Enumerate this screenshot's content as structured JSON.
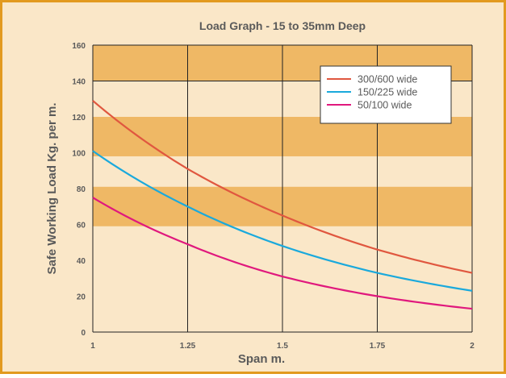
{
  "chart_data": {
    "type": "line",
    "title": "Load Graph - 15 to 35mm Deep",
    "xlabel": "Span m.",
    "ylabel": "Safe Working Load Kg. per m.",
    "xlim": [
      1,
      2
    ],
    "ylim": [
      0,
      160
    ],
    "xticks": [
      1,
      1.25,
      1.5,
      1.75,
      2
    ],
    "xtick_labels": [
      "1",
      "1.25",
      "1.5",
      "1.75",
      "2"
    ],
    "yticks": [
      0,
      20,
      40,
      60,
      80,
      100,
      120,
      140,
      160
    ],
    "ytick_labels": [
      "0",
      "20",
      "40",
      "60",
      "80",
      "100",
      "120",
      "140",
      "160"
    ],
    "bands": [
      {
        "y0": 59,
        "y1": 81
      },
      {
        "y0": 98,
        "y1": 120
      },
      {
        "y0": 140,
        "y1": 160
      }
    ],
    "grid": "vertical lines at x ticks",
    "legend_position": "top-right",
    "series": [
      {
        "name": "300/600 wide",
        "color": "#e0573f",
        "x": [
          1,
          1.25,
          1.5,
          1.75,
          2
        ],
        "values": [
          129,
          91,
          65,
          46,
          33
        ]
      },
      {
        "name": "150/225 wide",
        "color": "#1aa9dc",
        "x": [
          1,
          1.25,
          1.5,
          1.75,
          2
        ],
        "values": [
          101,
          70,
          48,
          33,
          23
        ]
      },
      {
        "name": "50/100 wide",
        "color": "#e0187d",
        "x": [
          1,
          1.25,
          1.5,
          1.75,
          2
        ],
        "values": [
          75,
          49,
          31,
          20,
          13
        ]
      }
    ]
  },
  "colors": {
    "panel_bg": "#fae7c8",
    "band": "#efb865",
    "border": "#e29a1f",
    "text": "#5a5a5a"
  }
}
